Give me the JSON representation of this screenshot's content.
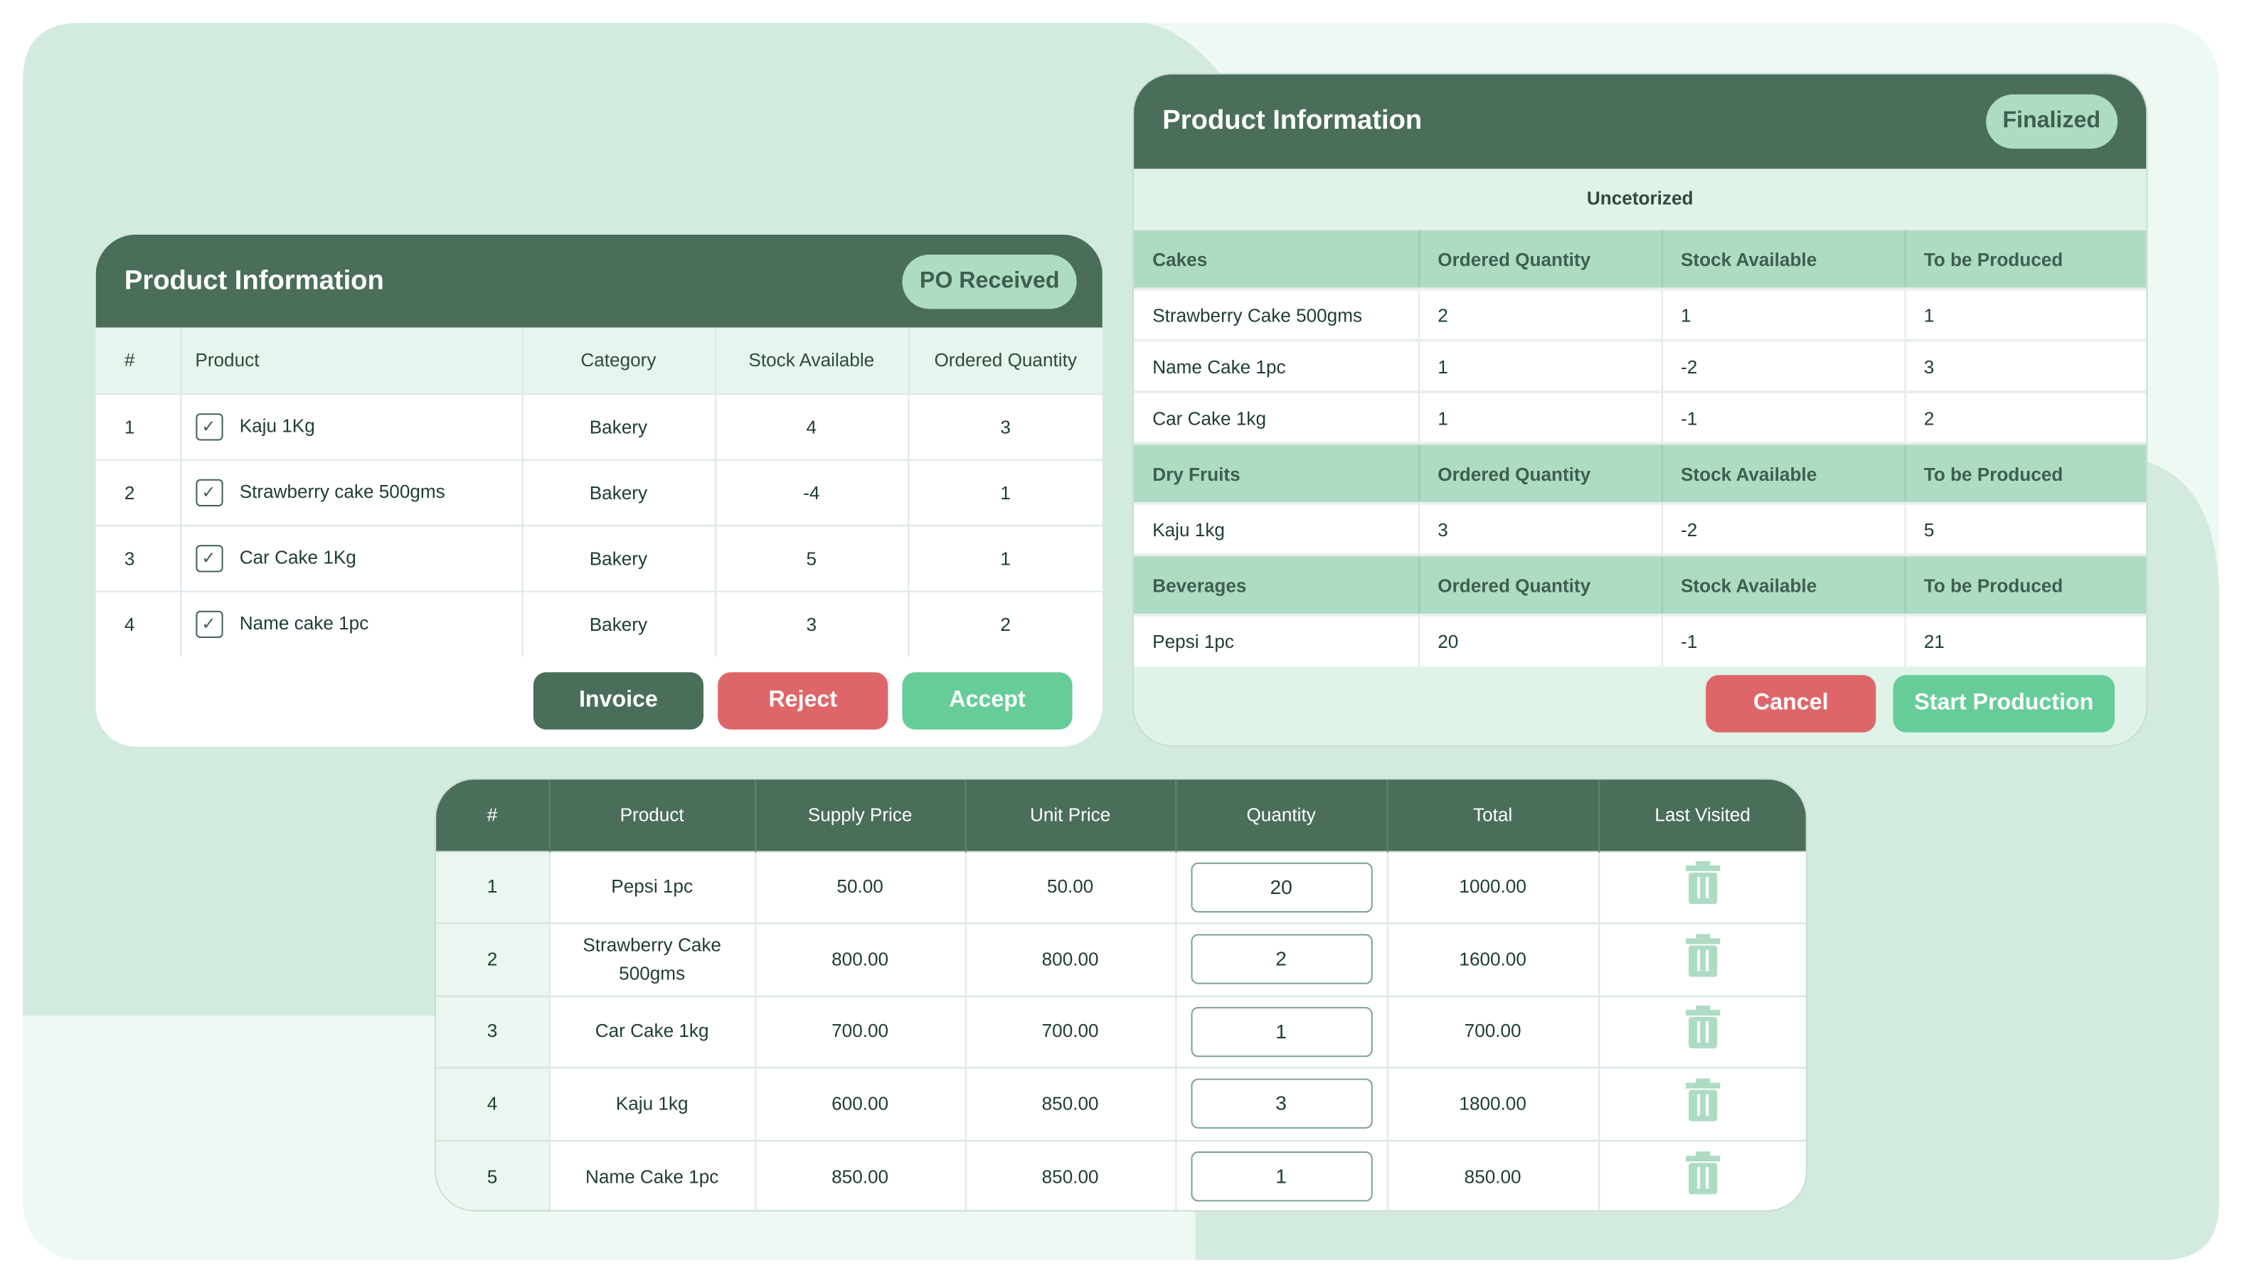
{
  "colors": {
    "primary": "#4a6e5a",
    "badge": "#aedbc4",
    "reject": "#df6668",
    "accept": "#66cd98"
  },
  "po_card": {
    "title": "Product Information",
    "status": "PO Received",
    "columns": [
      "#",
      "Product",
      "Category",
      "Stock Available",
      "Ordered Quantity"
    ],
    "rows": [
      {
        "no": "1",
        "product": "Kaju 1Kg",
        "category": "Bakery",
        "stock": "4",
        "ordered": "3",
        "checked": true
      },
      {
        "no": "2",
        "product": "Strawberry cake 500gms",
        "category": "Bakery",
        "stock": "-4",
        "ordered": "1",
        "checked": true
      },
      {
        "no": "3",
        "product": "Car Cake 1Kg",
        "category": "Bakery",
        "stock": "5",
        "ordered": "1",
        "checked": true
      },
      {
        "no": "4",
        "product": "Name cake 1pc",
        "category": "Bakery",
        "stock": "3",
        "ordered": "2",
        "checked": true
      }
    ],
    "buttons": {
      "invoice": "Invoice",
      "reject": "Reject",
      "accept": "Accept"
    }
  },
  "final_card": {
    "title": "Product Information",
    "status": "Finalized",
    "section": "Uncetorized",
    "groups": [
      {
        "name": "Cakes",
        "cols": [
          "Ordered Quantity",
          "Stock Available",
          "To be Produced"
        ],
        "rows": [
          [
            "Strawberry Cake 500gms",
            "2",
            "1",
            "1"
          ],
          [
            "Name Cake 1pc",
            "1",
            "-2",
            "3"
          ],
          [
            "Car Cake 1kg",
            "1",
            "-1",
            "2"
          ]
        ]
      },
      {
        "name": "Dry Fruits",
        "cols": [
          "Ordered Quantity",
          "Stock Available",
          "To be Produced"
        ],
        "rows": [
          [
            "Kaju 1kg",
            "3",
            "-2",
            "5"
          ]
        ]
      },
      {
        "name": "Beverages",
        "cols": [
          "Ordered Quantity",
          "Stock Available",
          "To be Produced"
        ],
        "rows": [
          [
            "Pepsi 1pc",
            "20",
            "-1",
            "21"
          ]
        ]
      }
    ],
    "buttons": {
      "cancel": "Cancel",
      "start": "Start Production"
    }
  },
  "order_table": {
    "columns": [
      "#",
      "Product",
      "Supply Price",
      "Unit Price",
      "Quantity",
      "Total",
      "Last Visited"
    ],
    "rows": [
      {
        "no": "1",
        "product": "Pepsi 1pc",
        "supply": "50.00",
        "unit": "50.00",
        "qty": "20",
        "total": "1000.00"
      },
      {
        "no": "2",
        "product": "Strawberry Cake 500gms",
        "supply": "800.00",
        "unit": "800.00",
        "qty": "2",
        "total": "1600.00"
      },
      {
        "no": "3",
        "product": "Car Cake 1kg",
        "supply": "700.00",
        "unit": "700.00",
        "qty": "1",
        "total": "700.00"
      },
      {
        "no": "4",
        "product": "Kaju 1kg",
        "supply": "600.00",
        "unit": "850.00",
        "qty": "3",
        "total": "1800.00"
      },
      {
        "no": "5",
        "product": "Name Cake 1pc",
        "supply": "850.00",
        "unit": "850.00",
        "qty": "1",
        "total": "850.00"
      }
    ],
    "row_icon": "trash-icon"
  }
}
